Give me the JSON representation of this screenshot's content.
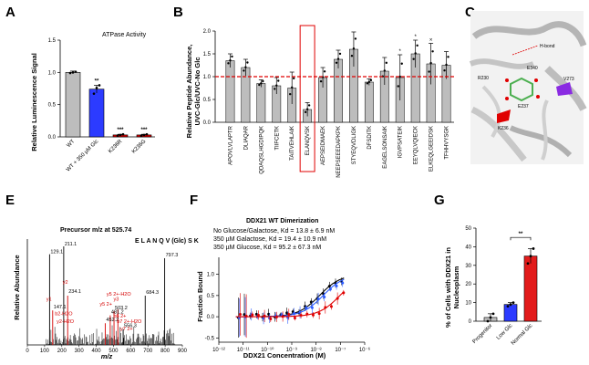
{
  "chart_data": [
    {
      "panel": "A",
      "type": "bar",
      "title": "ATPase Activity",
      "ylabel": "Relative Luminescence Signal",
      "ylim": [
        0,
        1.5
      ],
      "yticks": [
        "0.0",
        "0.5",
        "1.0",
        "1.5"
      ],
      "categories": [
        "WT",
        "WT + 350 µM Glc",
        "K236R",
        "K236G"
      ],
      "values": [
        1.0,
        0.74,
        0.03,
        0.03
      ],
      "errors": [
        0.02,
        0.06,
        0.01,
        0.01
      ],
      "points": [
        [
          0.99,
          1.0,
          1.01
        ],
        [
          0.67,
          0.76,
          0.8
        ],
        [
          0.02,
          0.03,
          0.04
        ],
        [
          0.02,
          0.03,
          0.04
        ]
      ],
      "colors": [
        "#bdbdbd",
        "#2c3bff",
        "#d40000",
        "#d40000"
      ],
      "significance": [
        "",
        "**",
        "***",
        "***"
      ]
    },
    {
      "panel": "B",
      "type": "bar",
      "ylabel_line1": "Relative Peptide Abundance,",
      "ylabel_line2": "UVC-Glc/UVC-No Glc",
      "ylim": [
        0,
        2.0
      ],
      "yticks": [
        "0.0",
        "0.5",
        "1.0",
        "1.5",
        "2.0"
      ],
      "reference_line": 1.0,
      "highlight_category": "ELANQVSK",
      "categories": [
        "APOVLVLAPTR",
        "DLIAQAR",
        "QDAQSLHGDIPQK",
        "TIIFCETK",
        "TAITVEHLAIK",
        "ELANQVSK",
        "AEPSEIDMAEK",
        "NEEPSEEEDAPKPK",
        "STYEQVDLIGK",
        "DFSDITK",
        "EAGELSONSAIK",
        "IGVPSATEIK",
        "EEYQLVQIECK",
        "ELKEQLGEEIDSK",
        "TFHHVYSGK"
      ],
      "values": [
        1.35,
        1.2,
        0.85,
        0.8,
        0.75,
        0.28,
        0.98,
        1.38,
        1.6,
        0.88,
        1.12,
        0.98,
        1.5,
        1.28,
        1.25
      ],
      "errors": [
        0.15,
        0.18,
        0.08,
        0.18,
        0.35,
        0.15,
        0.22,
        0.2,
        0.38,
        0.07,
        0.3,
        0.5,
        0.3,
        0.45,
        0.3
      ],
      "significance": [
        "",
        "",
        "",
        "",
        "",
        "",
        "",
        "",
        "",
        "",
        "",
        "*",
        "*",
        "×",
        ""
      ]
    },
    {
      "panel": "E",
      "type": "bar",
      "title": "Precursor m/z at 525.74",
      "sequence": "E L A N Q V (Glc) S K",
      "xlabel": "m/z",
      "ylabel": "Relative Abundance",
      "xlim": [
        0,
        900
      ],
      "xticks": [
        "0",
        "100",
        "200",
        "300",
        "400",
        "500",
        "600",
        "700",
        "800",
        "900"
      ],
      "peaks": [
        {
          "mz": 129.1,
          "rel": 0.92
        },
        {
          "mz": 211.1,
          "rel": 1.0
        },
        {
          "mz": 147.1,
          "rel": 0.35
        },
        {
          "mz": 234.1,
          "rel": 0.5
        },
        {
          "mz": 452.2,
          "rel": 0.22
        },
        {
          "mz": 481.2,
          "rel": 0.3
        },
        {
          "mz": 503.2,
          "rel": 0.34
        },
        {
          "mz": 525.7,
          "rel": 0.36
        },
        {
          "mz": 556.3,
          "rel": 0.16
        },
        {
          "mz": 684.3,
          "rel": 0.5
        },
        {
          "mz": 797.3,
          "rel": 0.88
        }
      ],
      "peak_labels": [
        "129.1",
        "211.1",
        "147.1",
        "234.1",
        "452.2",
        "481.2",
        "503.2",
        "556.3",
        "684.3",
        "797.3"
      ],
      "ion_labels": [
        "y1",
        "y2",
        "b2-H2O",
        "y2-H2O",
        "y5 2+",
        "y5 2+-H2O",
        "y3",
        "b6 2+",
        "b7 2+-H2O",
        "y7 2+"
      ]
    },
    {
      "panel": "F",
      "type": "scatter",
      "title": "DDX21 WT Dimerization",
      "xlabel": "DDX21 Concentration (M)",
      "ylabel": "Fraction Bound",
      "ylim": [
        -0.6,
        1.4
      ],
      "yticks": [
        "-0.5",
        "0.0",
        "0.5",
        "1.0"
      ],
      "xlim_log10": [
        -12,
        -6
      ],
      "xticks": [
        "10⁻¹²",
        "10⁻¹¹",
        "10⁻¹⁰",
        "10⁻⁹",
        "10⁻⁸",
        "10⁻⁷",
        "10⁻⁶"
      ],
      "series": [
        {
          "name": "No Glucose/Galactose, Kd = 13.8 ± 6.9 nM",
          "color": "#000000",
          "kd_log10": -7.86
        },
        {
          "name": "350 µM Galactose, Kd = 19.4 ± 10.9 nM",
          "color": "#2c5bff",
          "kd_log10": -7.71
        },
        {
          "name": "350 µM Glucose, Kd = 95.2 ± 67.3 nM",
          "color": "#e00000",
          "kd_log10": -7.02
        }
      ]
    },
    {
      "panel": "G",
      "type": "bar",
      "ylabel_line1": "% of Cells with DDX21 in",
      "ylabel_line2": "Nucleoplasm",
      "ylim": [
        0,
        50
      ],
      "yticks": [
        "0",
        "10",
        "20",
        "30",
        "40",
        "50"
      ],
      "categories": [
        "Progenitor",
        "Low Glc",
        "Normal Glc"
      ],
      "values": [
        2,
        9,
        35
      ],
      "errors": [
        2,
        1,
        4
      ],
      "points": [
        [
          0,
          2,
          4
        ],
        [
          8,
          9,
          10
        ],
        [
          31,
          35,
          39
        ]
      ],
      "colors": [
        "#bdbdbd",
        "#2c3bff",
        "#e21b1b"
      ],
      "significance_bracket": {
        "from": "Low Glc",
        "to": "Normal Glc",
        "label": "**"
      }
    }
  ],
  "panels": {
    "A": "A",
    "B": "B",
    "C": "C",
    "E": "E",
    "F": "F",
    "G": "G"
  },
  "structure": {
    "labels": [
      "H-bond",
      "E340",
      "R230",
      "V273",
      "E237",
      "K236"
    ],
    "colors": {
      "ribbon": "#bfbfbf",
      "sugar": "#4caf50",
      "oxygen": "#e00000",
      "k236": "#e00000",
      "v273": "#8a2be2"
    }
  }
}
